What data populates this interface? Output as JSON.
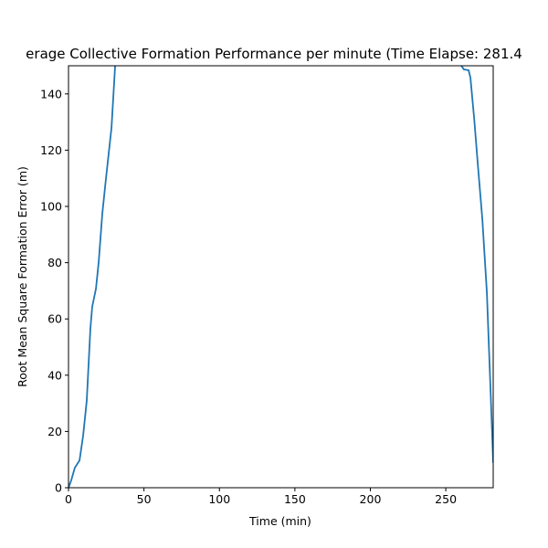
{
  "chart_data": {
    "type": "line",
    "title": "erage Collective Formation Performance per minute (Time Elapse: 281.4",
    "xlabel": "Time (min)",
    "ylabel": "Root Mean Square Formation Error (m)",
    "x": [
      0,
      1.8,
      4.2,
      7.3,
      9.7,
      12.1,
      14.5,
      15.7,
      18.2,
      20,
      22.4,
      24.8,
      28.5,
      30.9,
      32,
      259,
      260.3,
      262,
      265.1,
      266.3,
      268.8,
      271.2,
      274.2,
      277.2,
      279.7,
      281.4
    ],
    "series": [
      {
        "name": "rmse",
        "color": "#1f77b4",
        "values": [
          0,
          2.6,
          7.1,
          9.7,
          18.5,
          31,
          56.5,
          64.3,
          70.8,
          80.2,
          97.4,
          109.8,
          128,
          150,
          155,
          154,
          150,
          148.7,
          148.4,
          145.8,
          131.2,
          115,
          95.5,
          69.5,
          33.8,
          8.8
        ]
      }
    ],
    "xlim": [
      0,
      281.4
    ],
    "ylim": [
      0,
      150
    ],
    "xticks": [
      0,
      50,
      100,
      150,
      200,
      250
    ],
    "yticks": [
      0,
      20,
      40,
      60,
      80,
      100,
      120,
      140
    ]
  }
}
